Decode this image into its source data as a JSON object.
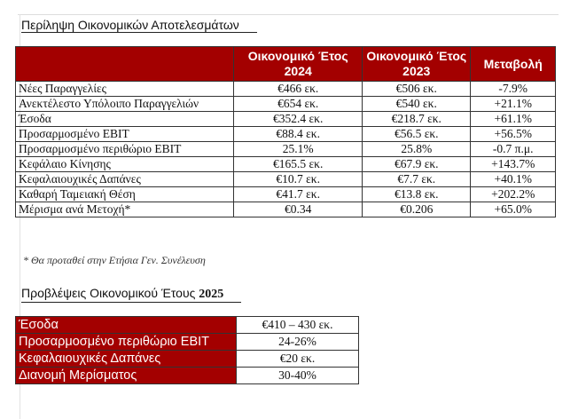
{
  "summary": {
    "title": "Περίληψη Οικονομικών Αποτελεσμάτων",
    "headers": [
      "",
      "Οικονομικό Έτος 2024",
      "Οικονομικό Έτος  2023",
      "Μεταβολή"
    ],
    "rows": [
      [
        "Νέες Παραγγελίες",
        "€466 εκ.",
        "€506 εκ.",
        "-7.9%"
      ],
      [
        "Ανεκτέλεστο Υπόλοιπο Παραγγελιών",
        "€654 εκ.",
        "€540 εκ.",
        "+21.1%"
      ],
      [
        "Έσοδα",
        "€352.4 εκ.",
        "€218.7 εκ.",
        "+61.1%"
      ],
      [
        "Προσαρμοσμένο EBIT",
        "€88.4 εκ.",
        "€56.5 εκ.",
        "+56.5%"
      ],
      [
        "Προσαρμοσμένο περιθώριο EBIT",
        "25.1%",
        "25.8%",
        "-0.7 π.μ."
      ],
      [
        "Κεφάλαιο Κίνησης",
        "€165.5 εκ.",
        "€67.9 εκ.",
        "+143.7%"
      ],
      [
        "Κεφαλαιουχικές Δαπάνες",
        "€10.7 εκ.",
        "€7.7 εκ.",
        "+40.1%"
      ],
      [
        "Καθαρή Ταμειακή Θέση",
        "€41.7 εκ.",
        "€13.8 εκ.",
        "+202.2%"
      ],
      [
        "Μέρισμα ανά Μετοχή*",
        "€0.34",
        "€0.206",
        "+65.0%"
      ]
    ],
    "footnote": "* Θα προταθεί στην Ετήσια Γεν. Συνέλευση"
  },
  "forecast": {
    "title": "Προβλέψεις Οικονομικού Έτους",
    "year": "2025",
    "rows": [
      [
        "Έσοδα",
        "€410 – 430 εκ."
      ],
      [
        "Προσαρμοσμένο περιθώριο EBIT",
        "24-26%"
      ],
      [
        "Κεφαλαιουχικές Δαπάνες",
        "€20 εκ."
      ],
      [
        "Διανομή Μερίσματος",
        "30-40%"
      ]
    ]
  },
  "colors": {
    "header_bg": "#a30000",
    "header_text": "#ffffff"
  }
}
